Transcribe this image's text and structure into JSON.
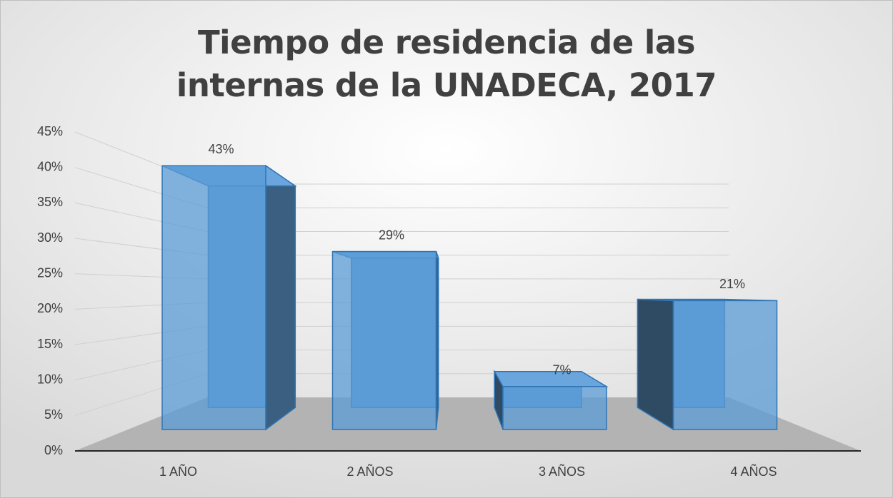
{
  "chart_data": {
    "type": "bar3d",
    "title": "Tiempo de residencia de las internas de la UNADECA, 2017",
    "categories": [
      "1 AÑO",
      "2 AÑOS",
      "3 AÑOS",
      "4 AÑOS"
    ],
    "values": [
      43,
      29,
      7,
      21
    ],
    "value_labels": [
      "43%",
      "29%",
      "7%",
      "21%"
    ],
    "color": "#5b9bd5",
    "ylim": [
      0,
      45
    ],
    "yticks": [
      {
        "value": 0,
        "label": "0%"
      },
      {
        "value": 5,
        "label": "5%"
      },
      {
        "value": 10,
        "label": "10%"
      },
      {
        "value": 15,
        "label": "15%"
      },
      {
        "value": 20,
        "label": "20%"
      },
      {
        "value": 25,
        "label": "25%"
      },
      {
        "value": 30,
        "label": "30%"
      },
      {
        "value": 35,
        "label": "35%"
      },
      {
        "value": 40,
        "label": "40%"
      },
      {
        "value": 45,
        "label": "45%"
      }
    ],
    "grid": true
  }
}
